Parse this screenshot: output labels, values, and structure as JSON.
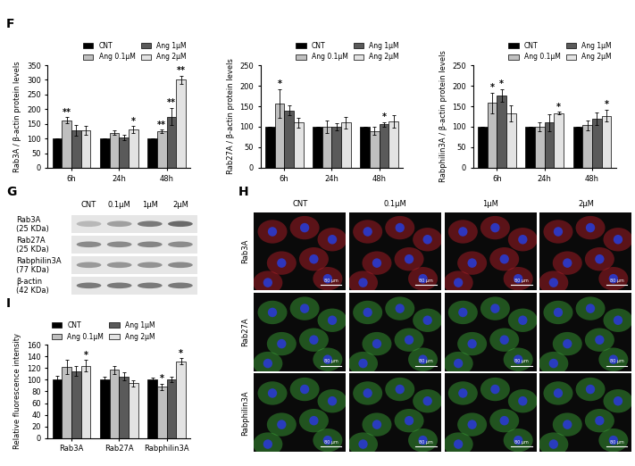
{
  "chart_data": [
    {
      "type": "bar",
      "panel": "F",
      "y_label": "Rab3A / β-actin protein levels",
      "categories": [
        "6h",
        "24h",
        "48h"
      ],
      "ylim": [
        0,
        350
      ],
      "yticks": [
        0,
        50,
        100,
        150,
        200,
        250,
        300,
        350
      ],
      "legend": "upper right",
      "series": [
        {
          "name": "CNT",
          "color": "#000000",
          "values": [
            100,
            100,
            100
          ],
          "errors": [
            0,
            0,
            0
          ],
          "significance": [
            null,
            null,
            null
          ]
        },
        {
          "name": "Ang 0.1μM",
          "color": "#bfbfbf",
          "values": [
            162,
            120,
            125
          ],
          "errors": [
            10,
            8,
            5
          ],
          "significance": [
            "**",
            null,
            "**"
          ]
        },
        {
          "name": "Ang 1μM",
          "color": "#5a5a5a",
          "values": [
            127,
            103,
            175
          ],
          "errors": [
            18,
            10,
            30
          ],
          "significance": [
            null,
            null,
            "**"
          ]
        },
        {
          "name": "Ang 2μM",
          "color": "#e3e3e3",
          "values": [
            128,
            130,
            300
          ],
          "errors": [
            15,
            12,
            15
          ],
          "significance": [
            null,
            "*",
            "**"
          ]
        }
      ]
    },
    {
      "type": "bar",
      "y_label": "Rab27A / β-actin protein levels",
      "categories": [
        "6h",
        "24h",
        "48h"
      ],
      "ylim": [
        0,
        250
      ],
      "yticks": [
        0,
        50,
        100,
        150,
        200,
        250
      ],
      "legend": "upper right",
      "series": [
        {
          "name": "CNT",
          "color": "#000000",
          "values": [
            100,
            100,
            100
          ],
          "errors": [
            0,
            0,
            0
          ],
          "significance": [
            null,
            null,
            null
          ]
        },
        {
          "name": "Ang 0.1μM",
          "color": "#bfbfbf",
          "values": [
            157,
            100,
            90
          ],
          "errors": [
            35,
            15,
            10
          ],
          "significance": [
            "*",
            null,
            null
          ]
        },
        {
          "name": "Ang 1μM",
          "color": "#5a5a5a",
          "values": [
            140,
            100,
            106
          ],
          "errors": [
            12,
            8,
            5
          ],
          "significance": [
            null,
            null,
            "*"
          ]
        },
        {
          "name": "Ang 2μM",
          "color": "#e3e3e3",
          "values": [
            110,
            110,
            113
          ],
          "errors": [
            12,
            15,
            15
          ],
          "significance": [
            null,
            null,
            null
          ]
        }
      ]
    },
    {
      "type": "bar",
      "y_label": "Rabphilin3A / β-actin protein levels",
      "categories": [
        "6h",
        "24h",
        "48h"
      ],
      "ylim": [
        0,
        250
      ],
      "yticks": [
        0,
        50,
        100,
        150,
        200,
        250
      ],
      "legend": "upper right",
      "series": [
        {
          "name": "CNT",
          "color": "#000000",
          "values": [
            100,
            100,
            100
          ],
          "errors": [
            0,
            0,
            0
          ],
          "significance": [
            null,
            null,
            null
          ]
        },
        {
          "name": "Ang 0.1μM",
          "color": "#bfbfbf",
          "values": [
            158,
            100,
            104
          ],
          "errors": [
            25,
            10,
            12
          ],
          "significance": [
            "*",
            null,
            null
          ]
        },
        {
          "name": "Ang 1μM",
          "color": "#5a5a5a",
          "values": [
            177,
            110,
            120
          ],
          "errors": [
            15,
            20,
            15
          ],
          "significance": [
            "*",
            null,
            null
          ]
        },
        {
          "name": "Ang 2μM",
          "color": "#e3e3e3",
          "values": [
            132,
            133,
            127
          ],
          "errors": [
            20,
            3,
            15
          ],
          "significance": [
            null,
            "*",
            "*"
          ]
        }
      ]
    },
    {
      "type": "bar",
      "panel": "I",
      "y_label": "Relative fluorescence intensity",
      "categories": [
        "Rab3A",
        "Rab27A",
        "Rabphilin3A"
      ],
      "ylim": [
        0,
        160
      ],
      "yticks": [
        0,
        20,
        40,
        60,
        80,
        100,
        120,
        140,
        160
      ],
      "legend": "upper left",
      "series": [
        {
          "name": "CNT",
          "color": "#000000",
          "values": [
            100,
            100,
            100
          ],
          "errors": [
            7,
            5,
            4
          ],
          "significance": [
            null,
            null,
            null
          ]
        },
        {
          "name": "Ang 0.1μM",
          "color": "#bfbfbf",
          "values": [
            122,
            117,
            88
          ],
          "errors": [
            12,
            7,
            5
          ],
          "significance": [
            null,
            null,
            "*"
          ]
        },
        {
          "name": "Ang 1μM",
          "color": "#5a5a5a",
          "values": [
            115,
            106,
            101
          ],
          "errors": [
            8,
            7,
            5
          ],
          "significance": [
            null,
            null,
            null
          ]
        },
        {
          "name": "Ang 2μM",
          "color": "#e3e3e3",
          "values": [
            124,
            94,
            132
          ],
          "errors": [
            10,
            5,
            5
          ],
          "significance": [
            "*",
            null,
            "*"
          ]
        }
      ]
    }
  ],
  "blot": {
    "panel": "G",
    "columns": [
      "CNT",
      "0.1μM",
      "1μM",
      "2μM"
    ],
    "bands": [
      {
        "name": "Rab3A",
        "size": "(25 KDa)"
      },
      {
        "name": "Rab27A",
        "size": "(25 KDa)"
      },
      {
        "name": "Rabphilin3A",
        "size": "(77 KDa)"
      },
      {
        "name": "β-actin",
        "size": "(42 KDa)"
      }
    ]
  },
  "images": {
    "panel": "H",
    "columns": [
      "CNT",
      "0.1μM",
      "1μM",
      "2μM"
    ],
    "rows": [
      {
        "label": "Rab3A",
        "color": "#c0202a"
      },
      {
        "label": "Rab27A",
        "color": "#3fae3a"
      },
      {
        "label": "Rabphilin3A",
        "color": "#3fae3a"
      }
    ],
    "scale_bar": "80 μm"
  }
}
